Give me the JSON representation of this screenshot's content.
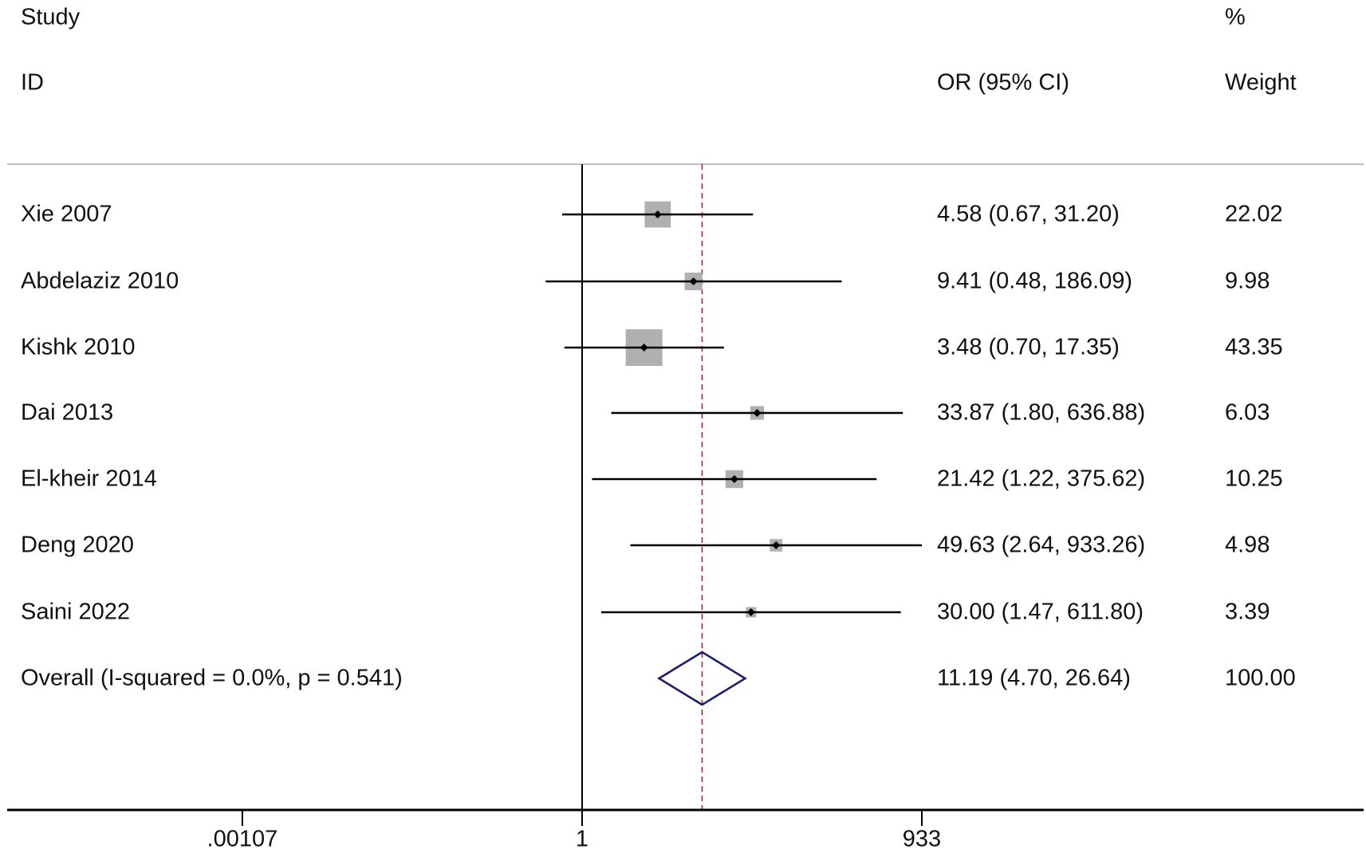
{
  "chart_data": {
    "type": "forest",
    "headers": {
      "study_1": "Study",
      "study_2": "ID",
      "or": "OR (95% CI)",
      "weight_1": "%",
      "weight_2": "Weight"
    },
    "x_scale": "log",
    "x_ticks": [
      0.00107,
      1,
      933
    ],
    "x_tick_labels": [
      ".00107",
      "1",
      "933"
    ],
    "null_value": 1,
    "studies": [
      {
        "id": "Xie 2007",
        "or": 4.58,
        "lo": 0.67,
        "hi": 31.2,
        "label": "4.58 (0.67, 31.20)",
        "weight": 22.02,
        "weight_label": "22.02"
      },
      {
        "id": "Abdelaziz 2010",
        "or": 9.41,
        "lo": 0.48,
        "hi": 186.09,
        "label": "9.41 (0.48, 186.09)",
        "weight": 9.98,
        "weight_label": "9.98"
      },
      {
        "id": "Kishk 2010",
        "or": 3.48,
        "lo": 0.7,
        "hi": 17.35,
        "label": "3.48 (0.70, 17.35)",
        "weight": 43.35,
        "weight_label": "43.35"
      },
      {
        "id": "Dai 2013",
        "or": 33.87,
        "lo": 1.8,
        "hi": 636.88,
        "label": "33.87 (1.80, 636.88)",
        "weight": 6.03,
        "weight_label": "6.03"
      },
      {
        "id": "El-kheir 2014",
        "or": 21.42,
        "lo": 1.22,
        "hi": 375.62,
        "label": "21.42 (1.22, 375.62)",
        "weight": 10.25,
        "weight_label": "10.25"
      },
      {
        "id": "Deng 2020",
        "or": 49.63,
        "lo": 2.64,
        "hi": 933.26,
        "label": "49.63 (2.64, 933.26)",
        "weight": 4.98,
        "weight_label": "4.98"
      },
      {
        "id": "Saini 2022",
        "or": 30.0,
        "lo": 1.47,
        "hi": 611.8,
        "label": "30.00 (1.47, 611.80)",
        "weight": 3.39,
        "weight_label": "3.39"
      }
    ],
    "overall": {
      "id": "Overall  (I-squared = 0.0%, p = 0.541)",
      "or": 11.19,
      "lo": 4.7,
      "hi": 26.64,
      "label": "11.19 (4.70, 26.64)",
      "weight_label": "100.00"
    },
    "colors": {
      "box": "#b0b0b0",
      "diamond": "#1a1a6e",
      "overall_line": "#8b2a3a",
      "header_rule": "#bfbfbf"
    }
  }
}
